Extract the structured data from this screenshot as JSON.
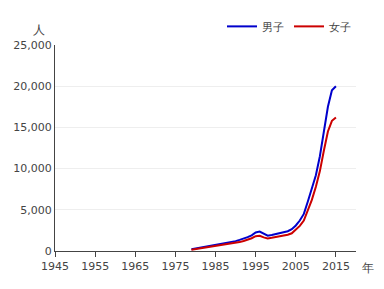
{
  "chart_data": {
    "type": "line",
    "xlabel": "年",
    "ylabel": "人",
    "x": [
      1979,
      1980,
      1981,
      1982,
      1983,
      1984,
      1985,
      1986,
      1987,
      1988,
      1989,
      1990,
      1991,
      1992,
      1993,
      1994,
      1995,
      1996,
      1997,
      1998,
      1999,
      2000,
      2001,
      2002,
      2003,
      2004,
      2005,
      2006,
      2007,
      2008,
      2009,
      2010,
      2011,
      2012,
      2013,
      2014,
      2015
    ],
    "series": [
      {
        "name": "男子",
        "color": "#0000cc",
        "values": [
          220,
          310,
          390,
          470,
          550,
          620,
          700,
          780,
          870,
          970,
          1080,
          1200,
          1350,
          1500,
          1680,
          1900,
          2250,
          2350,
          2050,
          1850,
          1950,
          2050,
          2150,
          2250,
          2400,
          2650,
          3100,
          3700,
          4500,
          6000,
          7500,
          9200,
          11500,
          14500,
          17500,
          19500,
          20000
        ]
      },
      {
        "name": "女子",
        "color": "#cc0000",
        "values": [
          160,
          230,
          300,
          380,
          450,
          510,
          570,
          640,
          710,
          790,
          880,
          970,
          1080,
          1210,
          1350,
          1550,
          1800,
          1850,
          1650,
          1530,
          1610,
          1700,
          1780,
          1860,
          1980,
          2150,
          2550,
          3050,
          3700,
          4900,
          6200,
          7800,
          9700,
          12200,
          14500,
          15800,
          16200
        ]
      }
    ],
    "xlim": [
      1945,
      2020
    ],
    "ylim": [
      0,
      25000
    ],
    "xticks": [
      1945,
      1955,
      1965,
      1975,
      1985,
      1995,
      2005,
      2015
    ],
    "yticks": [
      0,
      {
        "value": 5000,
        "label": "5,000"
      },
      {
        "value": 10000,
        "label": "10,000"
      },
      {
        "value": 15000,
        "label": "15,000"
      },
      {
        "value": 20000,
        "label": "20,000"
      },
      {
        "value": 25000,
        "label": "25,000"
      }
    ],
    "grid": true,
    "legend": "upper right"
  }
}
